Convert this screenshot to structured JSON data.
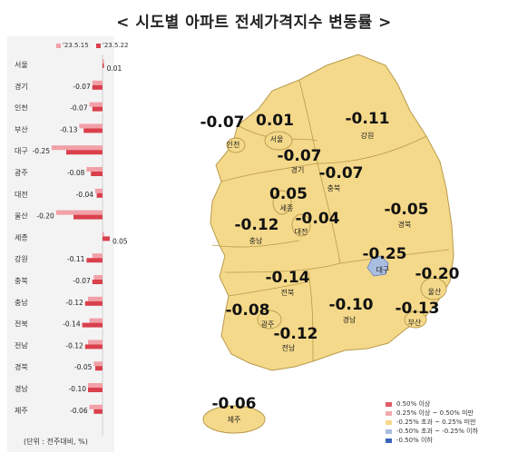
{
  "title": "< 시도별 아파트 전세가격지수 변동률 >",
  "bar_legend": [
    {
      "label": "'23.5.15",
      "color": "#f2a0a8"
    },
    {
      "label": "'23.5.22",
      "color": "#d9404c"
    }
  ],
  "unit_note": "(단위 : 전주대비, %)",
  "chart_data": {
    "type": "bar",
    "orientation": "horizontal",
    "categories": [
      "서울",
      "경기",
      "인천",
      "부산",
      "대구",
      "광주",
      "대전",
      "울산",
      "세종",
      "강원",
      "충북",
      "충남",
      "전북",
      "전남",
      "경북",
      "경남",
      "제주"
    ],
    "series": [
      {
        "name": "'23.5.15",
        "values": [
          0.01,
          -0.07,
          -0.09,
          -0.16,
          -0.35,
          -0.11,
          -0.05,
          -0.32,
          0.01,
          -0.07,
          -0.06,
          -0.1,
          -0.09,
          -0.1,
          -0.06,
          -0.1,
          -0.09
        ]
      },
      {
        "name": "'23.5.22",
        "values": [
          0.01,
          -0.07,
          -0.07,
          -0.13,
          -0.25,
          -0.08,
          -0.04,
          -0.2,
          0.05,
          -0.11,
          -0.07,
          -0.12,
          -0.14,
          -0.12,
          -0.05,
          -0.1,
          -0.06
        ]
      }
    ],
    "data_labels": [
      "0.01",
      "-0.07",
      "-0.07",
      "-0.13",
      "-0.25",
      "-0.08",
      "-0.04",
      "-0.20",
      "0.05",
      "-0.11",
      "-0.07",
      "-0.12",
      "-0.14",
      "-0.12",
      "-0.05",
      "-0.10",
      "-0.06"
    ]
  },
  "map_regions": [
    {
      "name": "인천",
      "value": "-0.07"
    },
    {
      "name": "서울",
      "value": "0.01"
    },
    {
      "name": "강원",
      "value": "-0.11"
    },
    {
      "name": "경기",
      "value": "-0.07"
    },
    {
      "name": "충북",
      "value": "-0.07"
    },
    {
      "name": "세종",
      "value": "0.05"
    },
    {
      "name": "대전",
      "value": "-0.04"
    },
    {
      "name": "경북",
      "value": "-0.05"
    },
    {
      "name": "충남",
      "value": "-0.12"
    },
    {
      "name": "대구",
      "value": "-0.25"
    },
    {
      "name": "전북",
      "value": "-0.14"
    },
    {
      "name": "울산",
      "value": "-0.20"
    },
    {
      "name": "광주",
      "value": "-0.08"
    },
    {
      "name": "경남",
      "value": "-0.10"
    },
    {
      "name": "부산",
      "value": "-0.13"
    },
    {
      "name": "전남",
      "value": "-0.12"
    },
    {
      "name": "제주",
      "value": "-0.06"
    }
  ],
  "map_legend": [
    {
      "label": "0.50% 이상",
      "color": "#e05a66"
    },
    {
      "label": "0.25% 이상 ~ 0.50% 미만",
      "color": "#f2a8ae"
    },
    {
      "label": "-0.25% 초과 ~ 0.25% 미만",
      "color": "#f5d98a"
    },
    {
      "label": "-0.50% 초과 ~ -0.25% 이하",
      "color": "#a9bde0"
    },
    {
      "label": "-0.50% 이하",
      "color": "#3a64b8"
    }
  ],
  "colors": {
    "map_fill": "#f5d98a",
    "map_stroke": "#b89a4a",
    "daegu_fill": "#a9bde0",
    "panel_bg": "#f3f3f3"
  }
}
